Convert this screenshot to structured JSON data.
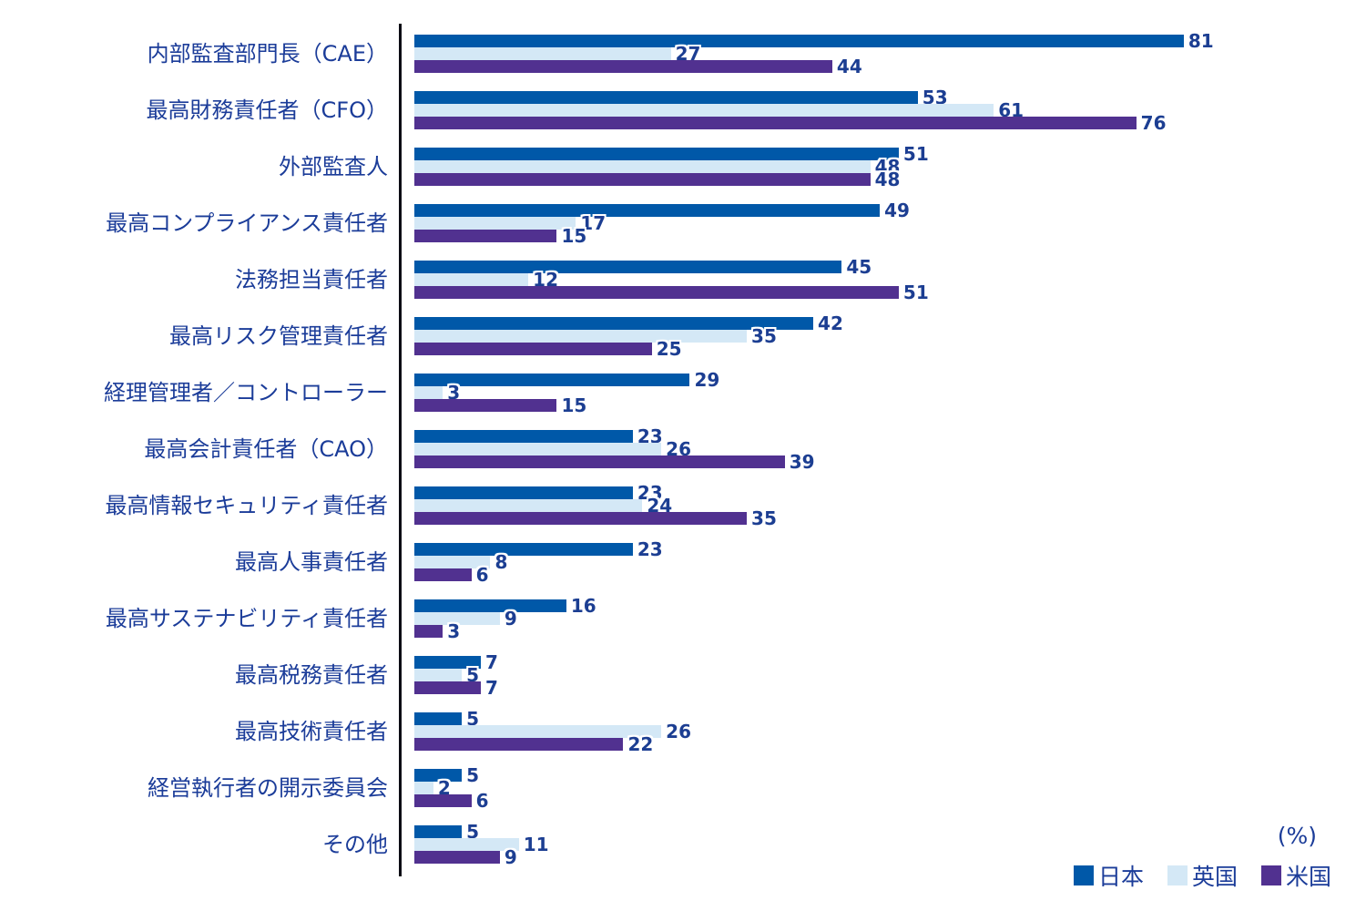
{
  "chart_data": {
    "type": "bar",
    "orientation": "horizontal",
    "unit_label": "(%)",
    "xlim": [
      0,
      100
    ],
    "grid": false,
    "legend_position": "bottom-right",
    "text_color": "#1b3c99",
    "value_label_color": "#1c3e92",
    "axis_line_color": "#0c0c14",
    "categories": [
      "内部監査部門長（CAE）",
      "最高財務責任者（CFO）",
      "外部監査人",
      "最高コンプライアンス責任者",
      "法務担当責任者",
      "最高リスク管理責任者",
      "経理管理者／コントローラー",
      "最高会計責任者（CAO）",
      "最高情報セキュリティ責任者",
      "最高人事責任者",
      "最高サステナビリティ責任者",
      "最高税務責任者",
      "最高技術責任者",
      "経営執行者の開示委員会",
      "その他"
    ],
    "series": [
      {
        "name": "日本",
        "color": "#0058a8",
        "values": [
          81,
          53,
          51,
          49,
          45,
          42,
          29,
          23,
          23,
          23,
          16,
          7,
          5,
          5,
          5
        ]
      },
      {
        "name": "英国",
        "color": "#d4e8f6",
        "values": [
          27,
          61,
          48,
          17,
          12,
          35,
          3,
          26,
          24,
          8,
          9,
          5,
          26,
          2,
          11
        ]
      },
      {
        "name": "米国",
        "color": "#513190",
        "values": [
          44,
          76,
          48,
          15,
          51,
          25,
          15,
          39,
          35,
          6,
          3,
          7,
          22,
          6,
          9
        ]
      }
    ]
  }
}
